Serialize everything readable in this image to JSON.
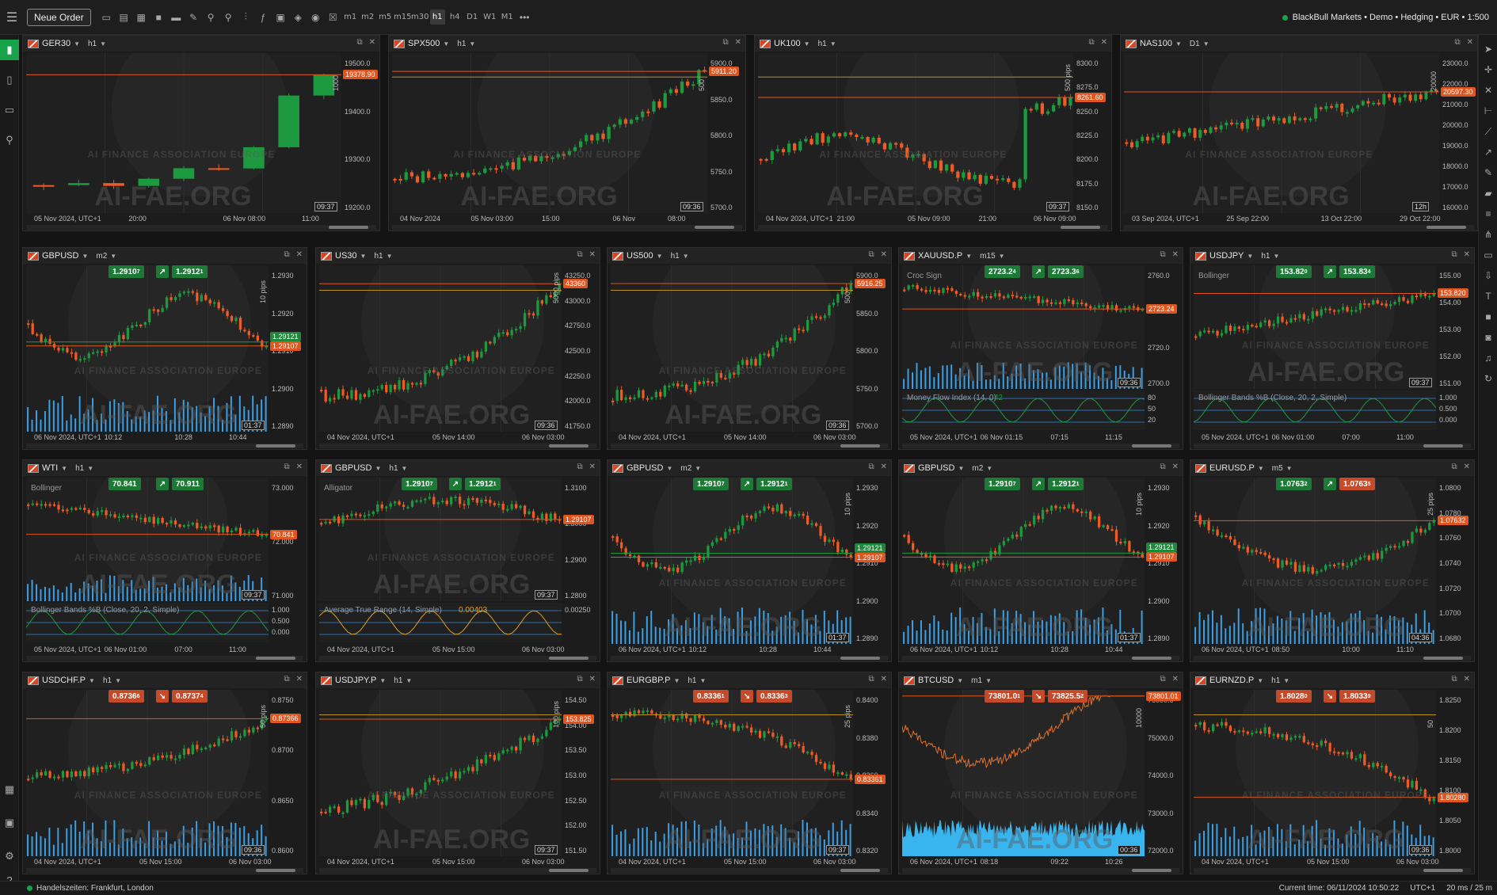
{
  "toolbar": {
    "new_order": "Neue Order",
    "timeframes": [
      "m1",
      "m2",
      "m5",
      "m15",
      "m30",
      "h1",
      "h4",
      "D1",
      "W1",
      "M1"
    ],
    "active_timeframe": "h1",
    "more": "•••",
    "account": "BlackBull Markets • Demo • Hedging • EUR • 1:500"
  },
  "status": {
    "trading_hours": "Handelszeiten: Frankfurt, London",
    "current_time": "Current time:  06/11/2024 10:50:22",
    "timezone": "UTC+1",
    "latency": "20 ms / 25 m"
  },
  "watermark": {
    "big": "AI-FAE.ORG",
    "small": "AI FINANCE ASSOCIATION EUROPE"
  },
  "colors": {
    "bull": "#1d9a3f",
    "bear": "#f05a24",
    "accent_green": "#17a34a",
    "volume": "#3aa0e8"
  },
  "charts": [
    {
      "symbol": "GER30",
      "tf": "h1",
      "clock": "09:37",
      "pips": "1000",
      "last": "19378.90",
      "ticks": [
        "19500.0",
        "19400.0",
        "19300.0",
        "19200.0"
      ],
      "times": [
        "05 Nov 2024, UTC+1",
        "20:00",
        "06 Nov 08:00",
        "11:00"
      ]
    },
    {
      "symbol": "SPX500",
      "tf": "h1",
      "clock": "09:36",
      "pips": "500",
      "last": "5911.20",
      "ticks": [
        "5900.0",
        "5850.0",
        "5800.0",
        "5750.0",
        "5700.0"
      ],
      "times": [
        "04 Nov 2024",
        "05 Nov 03:00",
        "15:00",
        "06 Nov",
        "08:00"
      ]
    },
    {
      "symbol": "UK100",
      "tf": "h1",
      "clock": "09:37",
      "pips": "500 pips",
      "last": "8261.60",
      "ticks": [
        "8300.0",
        "8275.0",
        "8250.0",
        "8225.0",
        "8200.0",
        "8175.0",
        "8150.0"
      ],
      "times": [
        "04 Nov 2024, UTC+1",
        "21:00",
        "05 Nov 09:00",
        "21:00",
        "06 Nov 09:00"
      ]
    },
    {
      "symbol": "NAS100",
      "tf": "D1",
      "clock": "12h",
      "pips": "20000",
      "last": "20597.30",
      "ticks": [
        "23000.0",
        "22000.0",
        "21000.0",
        "20000.0",
        "19000.0",
        "18000.0",
        "17000.0",
        "16000.0"
      ],
      "times": [
        "03 Sep 2024, UTC+1",
        "25 Sep 22:00",
        "13 Oct 22:00",
        "29 Oct 22:00"
      ]
    },
    {
      "symbol": "GBPUSD",
      "tf": "m2",
      "clock": "01:37",
      "pips": "10 pips",
      "last": "1.29107",
      "last2": "1.29121",
      "bid": "1.2910",
      "bid_sup": "7",
      "ask": "1.2912",
      "ask_sup": "1",
      "ticks": [
        "1.2930",
        "1.2920",
        "1.2910",
        "1.2900",
        "1.2890"
      ],
      "times": [
        "06 Nov 2024, UTC+1",
        "10:12",
        "10:28",
        "10:44"
      ]
    },
    {
      "symbol": "US30",
      "tf": "h1",
      "clock": "09:36",
      "pips": "5000 pips",
      "last": "43360",
      "ticks": [
        "43250.0",
        "43000.0",
        "42750.0",
        "42500.0",
        "42250.0",
        "42000.0",
        "41750.0"
      ],
      "times": [
        "04 Nov 2024, UTC+1",
        "05 Nov 14:00",
        "06 Nov 03:00"
      ]
    },
    {
      "symbol": "US500",
      "tf": "h1",
      "clock": "09:36",
      "pips": "500",
      "last": "5916.25",
      "ticks": [
        "5900.0",
        "5850.0",
        "5800.0",
        "5750.0",
        "5700.0"
      ],
      "times": [
        "04 Nov 2024, UTC+1",
        "05 Nov 14:00",
        "06 Nov 03:00"
      ]
    },
    {
      "symbol": "XAUUSD.P",
      "tf": "m15",
      "clock": "09:36",
      "last": "2723.24",
      "bid": "2723.2",
      "bid_sup": "4",
      "ask": "2723.3",
      "ask_sup": "6",
      "indicator": "Croc Sign",
      "sub_indicator": "Money Flow Index (14, 0)",
      "sub_value": "42",
      "ticks": [
        "2760.0",
        "2740.0",
        "2720.0",
        "2700.0"
      ],
      "sub_ticks": [
        "80",
        "50",
        "20"
      ],
      "times": [
        "05 Nov 2024, UTC+1",
        "06 Nov 01:15",
        "07:15",
        "11:15"
      ]
    },
    {
      "symbol": "USDJPY",
      "tf": "h1",
      "clock": "09:37",
      "last": "153.820",
      "bid": "153.82",
      "bid_sup": "0",
      "ask": "153.83",
      "ask_sup": "4",
      "indicator": "Bollinger",
      "sub_indicator": "Bollinger Bands %B (Close, 20, 2, Simple)",
      "ticks": [
        "155.00",
        "154.00",
        "153.00",
        "152.00",
        "151.00"
      ],
      "sub_ticks": [
        "1.000",
        "0.500",
        "0.000"
      ],
      "times": [
        "05 Nov 2024, UTC+1",
        "06 Nov 01:00",
        "07:00",
        "11:00"
      ]
    },
    {
      "symbol": "WTI",
      "tf": "h1",
      "clock": "09:37",
      "last": "70.841",
      "bid": "70.841",
      "ask": "70.911",
      "indicator": "Bollinger",
      "sub_indicator": "Bollinger Bands %B (Close, 20, 2, Simple)",
      "ticks": [
        "73.000",
        "72.000",
        "71.000"
      ],
      "sub_ticks": [
        "1.000",
        "0.500",
        "0.000"
      ],
      "times": [
        "05 Nov 2024, UTC+1",
        "06 Nov 01:00",
        "07:00",
        "11:00"
      ]
    },
    {
      "symbol": "GBPUSD",
      "tf": "h1",
      "clock": "09:37",
      "last": "1.29107",
      "bid": "1.2910",
      "bid_sup": "7",
      "ask": "1.2912",
      "ask_sup": "1",
      "indicator": "Alligator",
      "sub_indicator": "Average True Range (14, Simple)",
      "sub_value": "0.00403",
      "ticks": [
        "1.3100",
        "1.3000",
        "1.2900",
        "1.2800"
      ],
      "sub_ticks": [
        "0.00250"
      ],
      "times": [
        "04 Nov 2024, UTC+1",
        "05 Nov 15:00",
        "06 Nov 03:00"
      ]
    },
    {
      "symbol": "GBPUSD",
      "tf": "m2",
      "clock": "01:37",
      "pips": "10 pips",
      "last": "1.29107",
      "last2": "1.29121",
      "bid": "1.2910",
      "bid_sup": "7",
      "ask": "1.2912",
      "ask_sup": "1",
      "ticks": [
        "1.2930",
        "1.2920",
        "1.2910",
        "1.2900",
        "1.2890"
      ],
      "times": [
        "06 Nov 2024, UTC+1",
        "10:12",
        "10:28",
        "10:44"
      ]
    },
    {
      "symbol": "GBPUSD",
      "tf": "m2",
      "clock": "01:37",
      "pips": "10 pips",
      "last": "1.29107",
      "last2": "1.29121",
      "bid": "1.2910",
      "bid_sup": "7",
      "ask": "1.2912",
      "ask_sup": "1",
      "ticks": [
        "1.2930",
        "1.2920",
        "1.2910",
        "1.2900",
        "1.2890"
      ],
      "times": [
        "06 Nov 2024, UTC+1",
        "10:12",
        "10:28",
        "10:44"
      ]
    },
    {
      "symbol": "EURUSD.P",
      "tf": "m5",
      "clock": "04:36",
      "pips": "25 pips",
      "last": "1.07632",
      "bid": "1.0763",
      "bid_sup": "2",
      "ask": "1.0763",
      "ask_sup": "5",
      "ticks": [
        "1.0800",
        "1.0780",
        "1.0760",
        "1.0740",
        "1.0720",
        "1.0700",
        "1.0680"
      ],
      "times": [
        "06 Nov 2024, UTC+1",
        "08:50",
        "10:00",
        "11:10"
      ]
    },
    {
      "symbol": "USDCHF.P",
      "tf": "h1",
      "clock": "09:36",
      "pips": "50 pips",
      "last": "0.87366",
      "bid": "0.8736",
      "bid_sup": "6",
      "ask": "0.8737",
      "ask_sup": "4",
      "ticks": [
        "0.8750",
        "0.8700",
        "0.8650",
        "0.8600"
      ],
      "times": [
        "04 Nov 2024, UTC+1",
        "05 Nov 15:00",
        "06 Nov 03:00"
      ]
    },
    {
      "symbol": "USDJPY.P",
      "tf": "h1",
      "clock": "09:37",
      "pips": "100 pips",
      "last": "153.825",
      "ticks": [
        "154.50",
        "154.00",
        "153.50",
        "153.00",
        "152.50",
        "152.00",
        "151.50"
      ],
      "times": [
        "04 Nov 2024, UTC+1",
        "05 Nov 15:00",
        "06 Nov 03:00"
      ]
    },
    {
      "symbol": "EURGBP.P",
      "tf": "h1",
      "clock": "09:37",
      "pips": "25 pips",
      "last": "0.83361",
      "bid": "0.8336",
      "bid_sup": "1",
      "ask": "0.8336",
      "ask_sup": "3",
      "ticks": [
        "0.8400",
        "0.8380",
        "0.8360",
        "0.8340",
        "0.8320"
      ],
      "times": [
        "04 Nov 2024, UTC+1",
        "05 Nov 15:00",
        "06 Nov 03:00"
      ]
    },
    {
      "symbol": "BTCUSD",
      "tf": "m1",
      "clock": "00:36",
      "pips": "10000",
      "last": "73801.01",
      "bid": "73801.0",
      "bid_sup": "1",
      "ask": "73825.5",
      "ask_sup": "2",
      "ticks": [
        "76000.0",
        "75000.0",
        "74000.0",
        "73000.0",
        "72000.0"
      ],
      "times": [
        "06 Nov 2024, UTC+1",
        "08:18",
        "09:22",
        "10:26"
      ]
    },
    {
      "symbol": "EURNZD.P",
      "tf": "h1",
      "clock": "09:36",
      "pips": "50",
      "last": "1.80280",
      "bid": "1.8028",
      "bid_sup": "0",
      "ask": "1.8033",
      "ask_sup": "9",
      "ticks": [
        "1.8250",
        "1.8200",
        "1.8150",
        "1.8100",
        "1.8050",
        "1.8000"
      ],
      "times": [
        "04 Nov 2024, UTC+1",
        "05 Nov 15:00",
        "06 Nov 03:00"
      ]
    }
  ]
}
